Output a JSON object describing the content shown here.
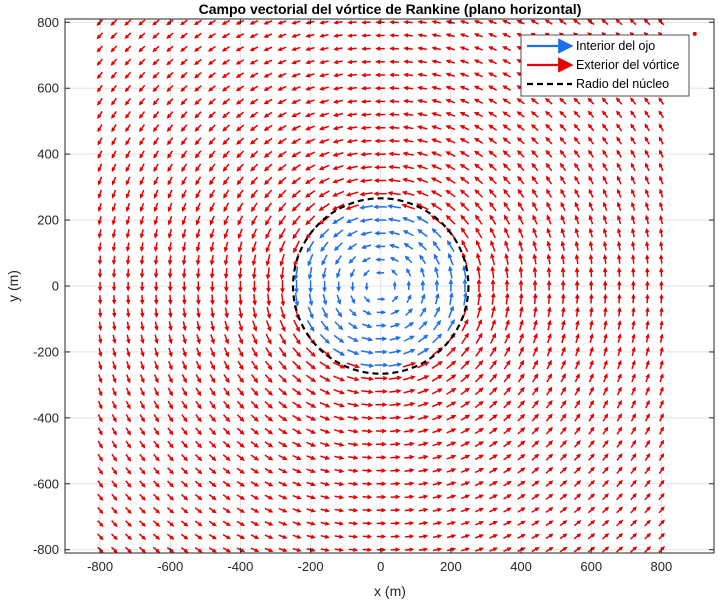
{
  "chart_data": {
    "type": "quiver",
    "title": "Campo vectorial del vórtice de Rankine (plano horizontal)",
    "xlabel": "x (m)",
    "ylabel": "y (m)",
    "xlim": [
      -900,
      950
    ],
    "ylim": [
      -810,
      810
    ],
    "xticks": [
      -800,
      -600,
      -400,
      -200,
      0,
      200,
      400,
      600,
      800
    ],
    "yticks": [
      -800,
      -600,
      -400,
      -200,
      0,
      200,
      400,
      600,
      800
    ],
    "grid": true,
    "legend_position": "top-right",
    "core_radius": 250,
    "grid_spacing": 40,
    "grid_range": [
      -800,
      800
    ],
    "rotation": "counterclockwise",
    "series": [
      {
        "name": "Interior del ojo",
        "kind": "quiver",
        "region": "r < 250",
        "color": "#1f6fe8"
      },
      {
        "name": "Exterior del vórtice",
        "kind": "quiver",
        "region": "r >= 250",
        "color": "#e60000"
      },
      {
        "name": "Radio del núcleo",
        "kind": "circle",
        "radius": 250,
        "color": "#000000",
        "linestyle": "dashed"
      }
    ],
    "annotations": [
      {
        "kind": "point",
        "x": 895,
        "y": 765,
        "color": "#e60000"
      }
    ]
  }
}
